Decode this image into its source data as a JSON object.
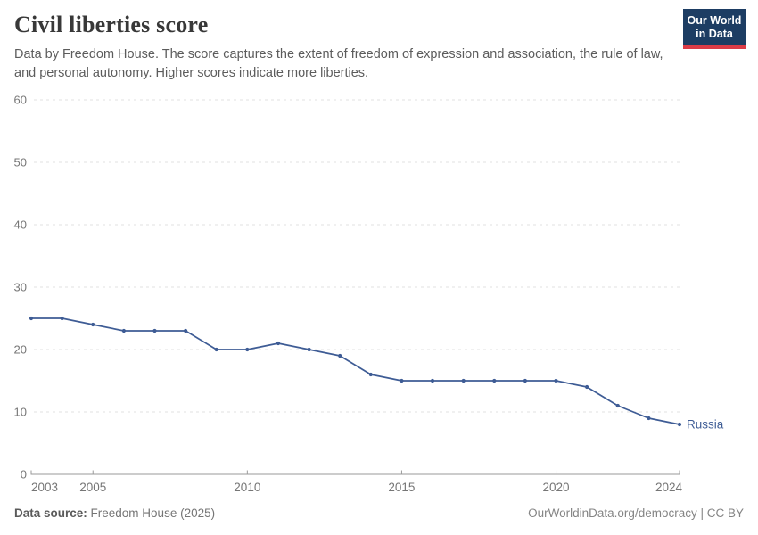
{
  "header": {
    "title": "Civil liberties score",
    "subtitle": "Data by Freedom House. The score captures the extent of freedom of expression and association, the rule of law, and personal autonomy. Higher scores indicate more liberties.",
    "logo": {
      "line1": "Our World",
      "line2": "in Data"
    }
  },
  "chart_data": {
    "type": "line",
    "title": "Civil liberties score",
    "x": [
      2003,
      2004,
      2005,
      2006,
      2007,
      2008,
      2009,
      2010,
      2011,
      2012,
      2013,
      2014,
      2015,
      2016,
      2017,
      2018,
      2019,
      2020,
      2021,
      2022,
      2023,
      2024
    ],
    "series": [
      {
        "name": "Russia",
        "values": [
          25,
          25,
          24,
          23,
          23,
          23,
          20,
          20,
          21,
          20,
          19,
          16,
          15,
          15,
          15,
          15,
          15,
          15,
          14,
          11,
          9,
          8
        ],
        "color": "#3e5c95"
      }
    ],
    "xlabel": "",
    "ylabel": "",
    "ylim": [
      0,
      60
    ],
    "yticks": [
      0,
      10,
      20,
      30,
      40,
      50,
      60
    ],
    "xticks": [
      2003,
      2005,
      2010,
      2015,
      2020,
      2024
    ],
    "grid": true,
    "grid_style": "dashed",
    "legend_position": "end-of-line-label"
  },
  "footer": {
    "source_label": "Data source:",
    "source_value": " Freedom House (2025)",
    "link": "OurWorldinData.org/democracy",
    "separator": " | ",
    "license": "CC BY"
  },
  "colors": {
    "line": "#3e5c95",
    "logo_bg": "#1d3d63",
    "logo_bar": "#dc3c47",
    "gridline": "#e0e0e0",
    "axis": "#9a9a9a",
    "tick_label": "#767676",
    "title": "#383838",
    "subtitle": "#5c5c5c"
  }
}
